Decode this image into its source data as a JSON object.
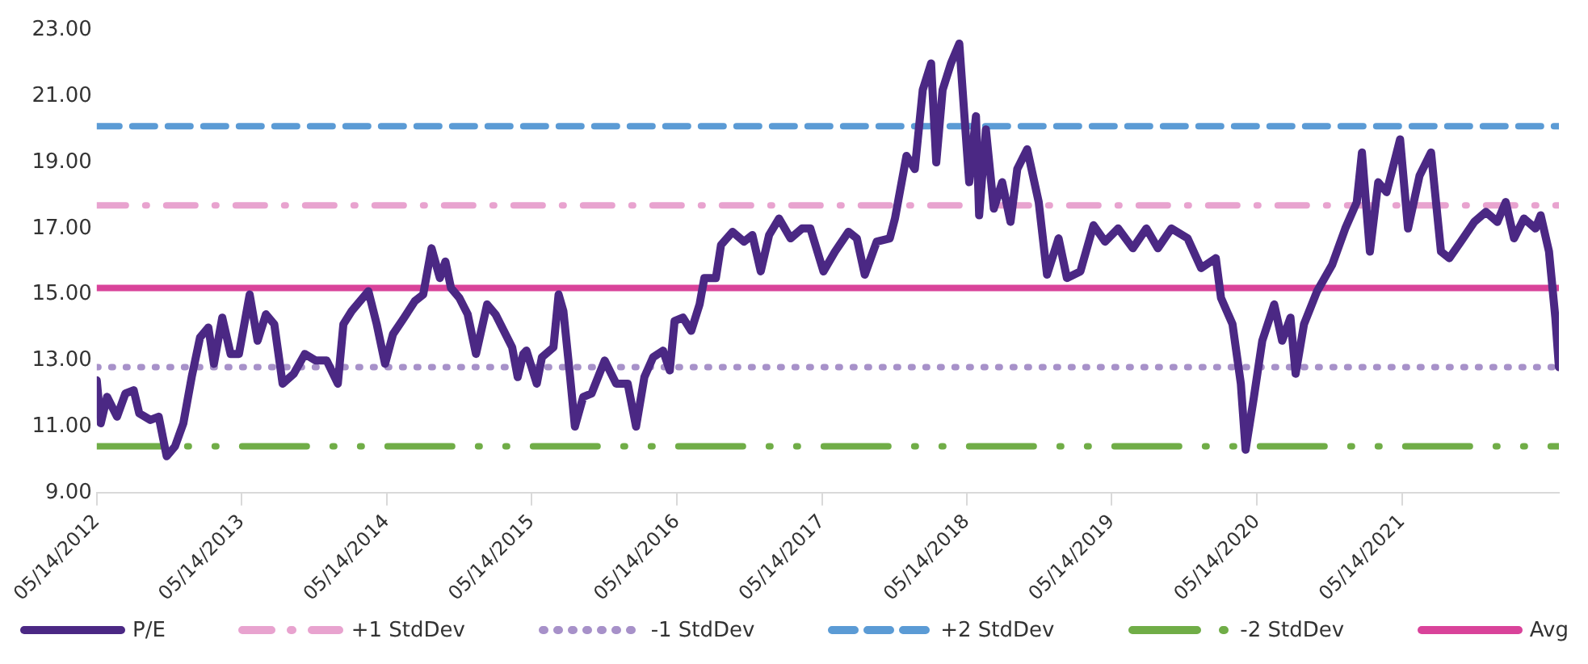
{
  "chart_data": {
    "type": "line",
    "x": [
      "2012-05-14",
      "2012-05-24",
      "2012-06-09",
      "2012-07-04",
      "2012-07-25",
      "2012-08-15",
      "2012-08-29",
      "2012-09-26",
      "2012-10-17",
      "2012-11-06",
      "2012-11-27",
      "2012-12-18",
      "2013-01-08",
      "2013-01-29",
      "2013-02-19",
      "2013-03-05",
      "2013-03-26",
      "2013-04-16",
      "2013-05-07",
      "2013-06-03",
      "2013-06-23",
      "2013-07-14",
      "2013-08-04",
      "2013-08-25",
      "2013-09-22",
      "2013-10-20",
      "2013-11-16",
      "2013-12-14",
      "2014-01-11",
      "2014-01-25",
      "2014-02-15",
      "2014-03-08",
      "2014-03-29",
      "2014-04-19",
      "2014-05-10",
      "2014-05-30",
      "2014-06-27",
      "2014-07-24",
      "2014-08-14",
      "2014-09-04",
      "2014-09-25",
      "2014-10-09",
      "2014-10-23",
      "2014-11-13",
      "2014-12-04",
      "2014-12-25",
      "2015-01-22",
      "2015-02-12",
      "2015-03-05",
      "2015-03-26",
      "2015-04-09",
      "2015-04-23",
      "2015-05-01",
      "2015-05-27",
      "2015-06-09",
      "2015-07-08",
      "2015-07-21",
      "2015-08-02",
      "2015-08-19",
      "2015-08-31",
      "2015-09-21",
      "2015-10-12",
      "2015-11-14",
      "2015-12-13",
      "2016-01-11",
      "2016-02-01",
      "2016-02-22",
      "2016-03-15",
      "2016-04-09",
      "2016-04-26",
      "2016-05-08",
      "2016-05-29",
      "2016-06-19",
      "2016-07-10",
      "2016-07-22",
      "2016-08-20",
      "2016-09-02",
      "2016-10-01",
      "2016-10-30",
      "2016-11-20",
      "2016-12-11",
      "2017-01-01",
      "2017-01-26",
      "2017-02-24",
      "2017-03-25",
      "2017-04-15",
      "2017-05-18",
      "2017-06-16",
      "2017-07-20",
      "2017-08-10",
      "2017-08-30",
      "2017-09-29",
      "2017-11-01",
      "2017-11-14",
      "2017-12-13",
      "2018-01-03",
      "2018-01-23",
      "2018-02-13",
      "2018-02-26",
      "2018-03-14",
      "2018-04-04",
      "2018-04-25",
      "2018-05-08",
      "2018-05-20",
      "2018-06-06",
      "2018-06-14",
      "2018-07-01",
      "2018-07-21",
      "2018-08-11",
      "2018-09-01",
      "2018-09-18",
      "2018-10-13",
      "2018-11-11",
      "2018-12-02",
      "2018-12-31",
      "2019-01-21",
      "2019-02-24",
      "2019-03-29",
      "2019-04-27",
      "2019-05-30",
      "2019-07-06",
      "2019-08-09",
      "2019-09-07",
      "2019-10-11",
      "2019-11-21",
      "2019-12-25",
      "2020-01-31",
      "2020-02-13",
      "2020-03-13",
      "2020-04-03",
      "2020-04-15",
      "2020-05-06",
      "2020-05-27",
      "2020-06-26",
      "2020-07-16",
      "2020-08-06",
      "2020-08-19",
      "2020-09-09",
      "2020-10-12",
      "2020-11-19",
      "2020-12-22",
      "2021-01-20",
      "2021-02-02",
      "2021-02-22",
      "2021-03-15",
      "2021-04-05",
      "2021-05-09",
      "2021-05-29",
      "2021-06-27",
      "2021-07-26",
      "2021-08-20",
      "2021-09-10",
      "2021-10-09",
      "2021-11-12",
      "2021-12-11",
      "2022-01-09",
      "2022-01-30",
      "2022-02-20",
      "2022-03-17",
      "2022-04-15",
      "2022-04-28",
      "2022-05-19",
      "2022-06-04",
      "2022-06-13"
    ],
    "series": [
      {
        "name": "P/E",
        "color": "#4b2884",
        "values": [
          12.4,
          11.1,
          11.9,
          11.3,
          12.0,
          12.1,
          11.4,
          11.2,
          11.3,
          10.1,
          10.4,
          11.1,
          12.5,
          13.7,
          14.0,
          12.9,
          14.3,
          13.2,
          13.2,
          15.0,
          13.6,
          14.4,
          14.1,
          12.3,
          12.6,
          13.2,
          13.0,
          13.0,
          12.3,
          14.1,
          14.5,
          14.8,
          15.1,
          14.1,
          12.9,
          13.8,
          14.3,
          14.8,
          15.0,
          16.4,
          15.5,
          16.0,
          15.2,
          14.9,
          14.4,
          13.2,
          14.7,
          14.4,
          13.9,
          13.4,
          12.5,
          13.2,
          13.3,
          12.3,
          13.1,
          13.4,
          15.0,
          14.5,
          12.5,
          11.0,
          11.9,
          12.0,
          13.0,
          12.3,
          12.3,
          11.0,
          12.5,
          13.1,
          13.3,
          12.7,
          14.2,
          14.3,
          13.9,
          14.7,
          15.5,
          15.5,
          16.5,
          16.9,
          16.6,
          16.8,
          15.7,
          16.8,
          17.3,
          16.7,
          17.0,
          17.0,
          15.7,
          16.3,
          16.9,
          16.7,
          15.6,
          16.6,
          16.7,
          17.3,
          19.2,
          18.8,
          21.2,
          22.0,
          19.0,
          21.2,
          22.0,
          22.6,
          20.4,
          18.4,
          20.4,
          17.4,
          20.0,
          17.6,
          18.4,
          17.2,
          18.8,
          19.4,
          17.8,
          15.6,
          16.7,
          15.5,
          15.7,
          17.1,
          16.6,
          17.0,
          16.4,
          17.0,
          16.4,
          17.0,
          16.7,
          15.8,
          16.1,
          14.9,
          14.1,
          12.3,
          10.3,
          11.9,
          13.6,
          14.7,
          13.6,
          14.3,
          12.6,
          14.1,
          15.1,
          15.9,
          17.0,
          17.8,
          19.3,
          16.3,
          18.4,
          18.1,
          19.7,
          17.0,
          18.6,
          19.3,
          16.3,
          16.1,
          16.6,
          17.2,
          17.5,
          17.2,
          17.8,
          16.7,
          17.3,
          17.0,
          17.4,
          16.3,
          14.3,
          12.8
        ]
      }
    ],
    "ref_lines": [
      {
        "axis": "y",
        "value": 17.7,
        "label": "+1 StdDev",
        "color": "#e8a3cf",
        "line_style": "dashdot"
      },
      {
        "axis": "y",
        "value": 12.8,
        "label": "-1 StdDev",
        "color": "#a791c9",
        "line_style": "dotted"
      },
      {
        "axis": "y",
        "value": 20.1,
        "label": "+2 StdDev",
        "color": "#5b9bd5",
        "line_style": "dashed"
      },
      {
        "axis": "y",
        "value": 10.4,
        "label": "-2 StdDev",
        "color": "#70ad47",
        "line_style": "longdashdot"
      },
      {
        "axis": "y",
        "value": 15.2,
        "label": "Avg",
        "color": "#d9439a",
        "line_style": "solid"
      }
    ],
    "xlim": [
      "2012-05-14",
      "2022-06-13"
    ],
    "xticks": [
      {
        "value": "2012-05-14",
        "label": "05/14/2012"
      },
      {
        "value": "2013-05-14",
        "label": "05/14/2013"
      },
      {
        "value": "2014-05-14",
        "label": "05/14/2014"
      },
      {
        "value": "2015-05-14",
        "label": "05/14/2015"
      },
      {
        "value": "2016-05-14",
        "label": "05/14/2016"
      },
      {
        "value": "2017-05-14",
        "label": "05/14/2017"
      },
      {
        "value": "2018-05-14",
        "label": "05/14/2018"
      },
      {
        "value": "2019-05-14",
        "label": "05/14/2019"
      },
      {
        "value": "2020-05-14",
        "label": "05/14/2020"
      },
      {
        "value": "2021-05-14",
        "label": "05/14/2021"
      }
    ],
    "ylim": [
      9,
      23
    ],
    "yticks": [
      {
        "value": 9,
        "label": "9.00"
      },
      {
        "value": 11,
        "label": "11.00"
      },
      {
        "value": 13,
        "label": "13.00"
      },
      {
        "value": 15,
        "label": "15.00"
      },
      {
        "value": 17,
        "label": "17.00"
      },
      {
        "value": 19,
        "label": "19.00"
      },
      {
        "value": 21,
        "label": "21.00"
      },
      {
        "value": 23,
        "label": "23.00"
      }
    ],
    "grid": false,
    "legend": "bottom",
    "marker": "none",
    "line_style": "solid"
  }
}
